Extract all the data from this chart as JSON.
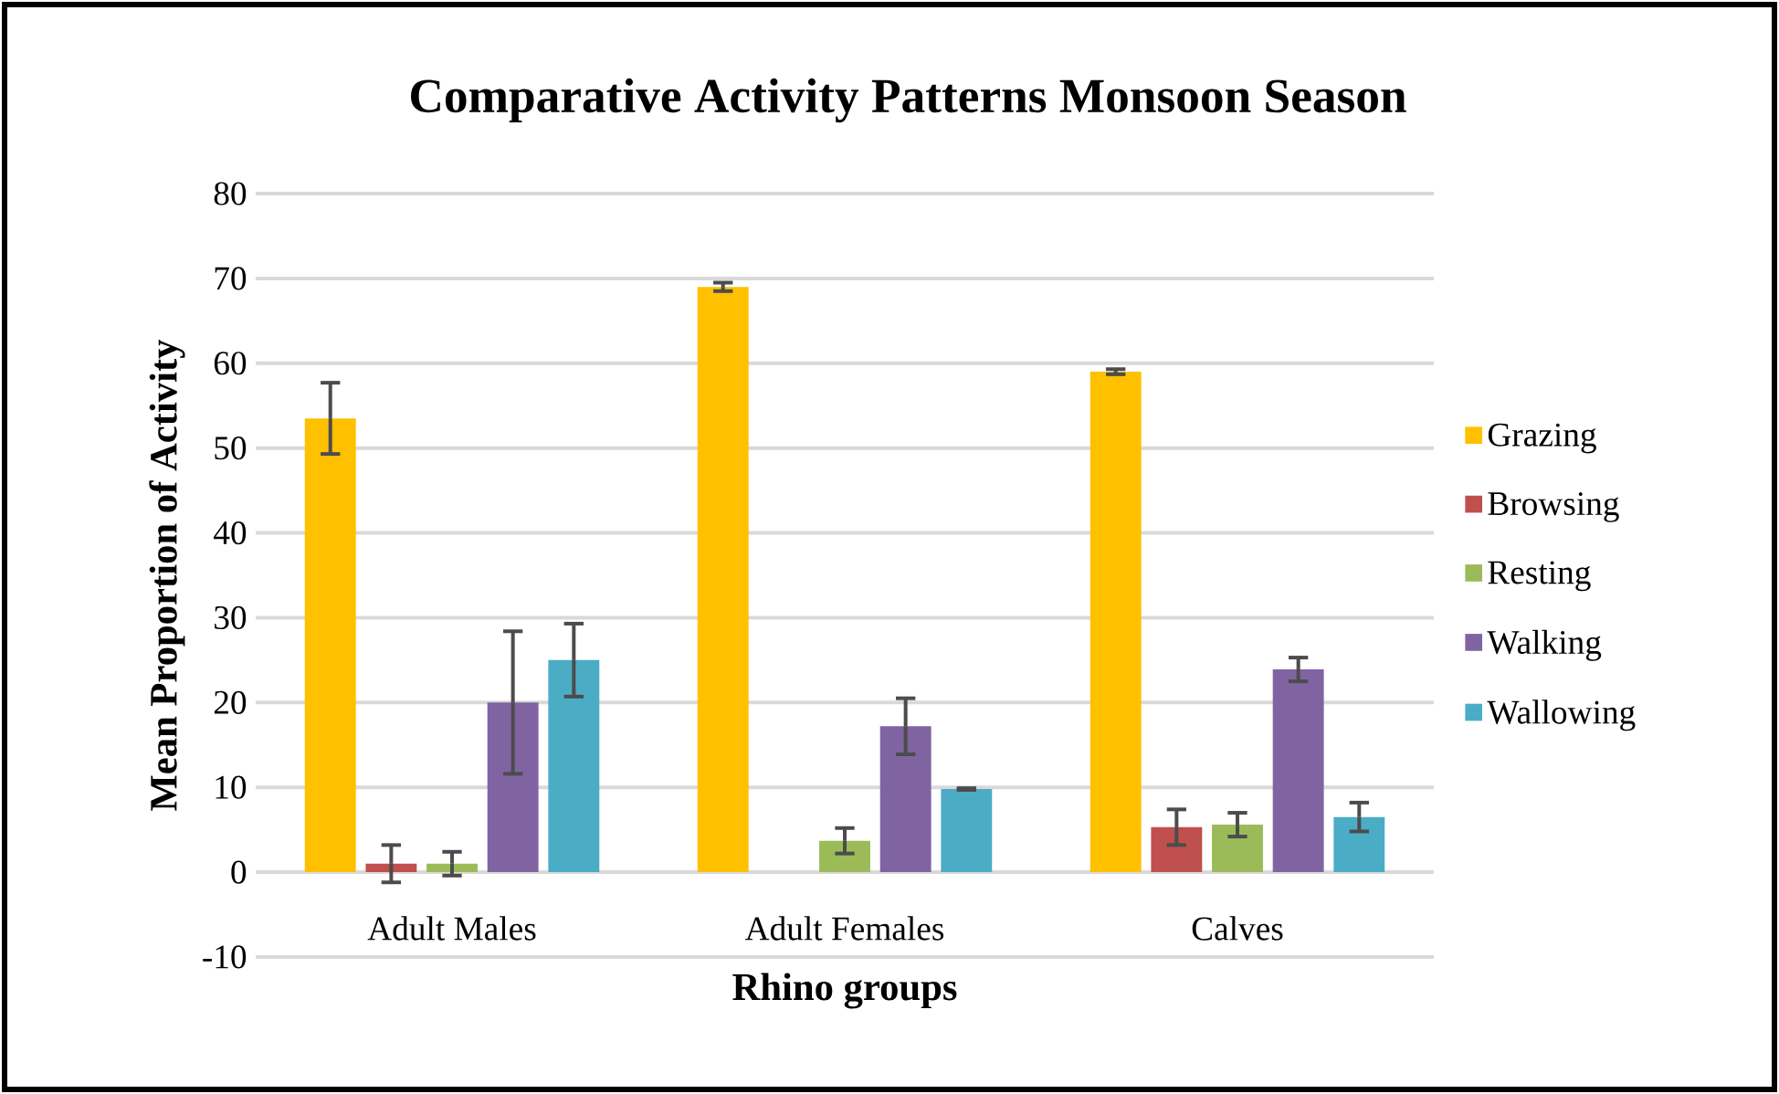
{
  "chart_data": {
    "type": "bar",
    "title": "Comparative Activity Patterns Monsoon Season",
    "xlabel": "Rhino groups",
    "ylabel": "Mean Proportion of Activity",
    "categories": [
      "Adult Males",
      "Adult Females",
      "Calves"
    ],
    "series": [
      {
        "name": "Grazing",
        "color": "#ffc000",
        "values": [
          53.5,
          69,
          59
        ],
        "errors": [
          4.2,
          0.5,
          0.3
        ]
      },
      {
        "name": "Browsing",
        "color": "#c0504d",
        "values": [
          1,
          null,
          5.3
        ],
        "errors": [
          2.2,
          null,
          2.1
        ]
      },
      {
        "name": "Resting",
        "color": "#9bbb59",
        "values": [
          1,
          3.7,
          5.6
        ],
        "errors": [
          1.4,
          1.5,
          1.4
        ]
      },
      {
        "name": "Walking",
        "color": "#8064a2",
        "values": [
          20,
          17.2,
          23.9
        ],
        "errors": [
          8.4,
          3.3,
          1.4
        ]
      },
      {
        "name": "Wallowing",
        "color": "#4bacc6",
        "values": [
          25,
          9.8,
          6.5
        ],
        "errors": [
          4.3,
          0.1,
          1.7
        ]
      }
    ],
    "ylim": [
      -10,
      80
    ],
    "yticks": [
      -10,
      0,
      10,
      20,
      30,
      40,
      50,
      60,
      70,
      80
    ],
    "grid": "y",
    "legend": "right"
  }
}
